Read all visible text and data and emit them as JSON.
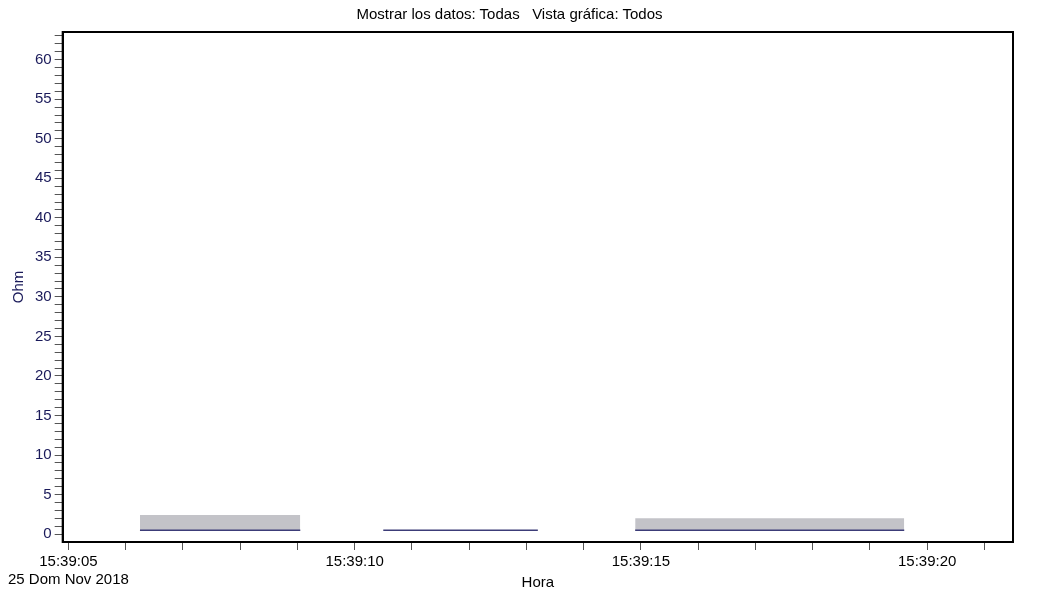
{
  "chart_data": {
    "type": "line",
    "title": "Mostrar los datos: Todas   Vista gráfica: Todos",
    "xlabel": "Hora",
    "ylabel": "Ohm",
    "series": [
      {
        "color": "#3c3c78",
        "x": [
          "2018-11-25T15:39:06.25",
          "2018-11-25T15:39:09.05"
        ],
        "values": [
          0.5,
          0.5
        ],
        "lower": [
          0.4,
          0.4
        ],
        "upper": [
          2.4,
          2.4
        ]
      },
      {
        "color": "#3c3c78",
        "x": [
          "2018-11-25T15:39:10.5",
          "2018-11-25T15:39:13.2"
        ],
        "values": [
          0.5,
          0.5
        ]
      },
      {
        "color": "#3c3c78",
        "x": [
          "2018-11-25T15:39:14.9",
          "2018-11-25T15:39:19.6"
        ],
        "values": [
          0.5,
          0.5
        ],
        "lower": [
          0.5,
          0.5
        ],
        "upper": [
          2.0,
          2.0
        ]
      }
    ],
    "xlim": [
      "2018-11-25T15:39:04.9",
      "2018-11-25T15:39:21.5"
    ],
    "xticks": [
      {
        "value": "2018-11-25T15:39:05",
        "label": "15:39:05\n25 Dom Nov 2018"
      },
      {
        "value": "2018-11-25T15:39:06",
        "label": null
      },
      {
        "value": "2018-11-25T15:39:07",
        "label": null
      },
      {
        "value": "2018-11-25T15:39:08",
        "label": null
      },
      {
        "value": "2018-11-25T15:39:09",
        "label": null
      },
      {
        "value": "2018-11-25T15:39:10",
        "label": "15:39:10"
      },
      {
        "value": "2018-11-25T15:39:11",
        "label": null
      },
      {
        "value": "2018-11-25T15:39:12",
        "label": null
      },
      {
        "value": "2018-11-25T15:39:13",
        "label": null
      },
      {
        "value": "2018-11-25T15:39:14",
        "label": null
      },
      {
        "value": "2018-11-25T15:39:15",
        "label": "15:39:15"
      },
      {
        "value": "2018-11-25T15:39:16",
        "label": null
      },
      {
        "value": "2018-11-25T15:39:17",
        "label": null
      },
      {
        "value": "2018-11-25T15:39:18",
        "label": null
      },
      {
        "value": "2018-11-25T15:39:19",
        "label": null
      },
      {
        "value": "2018-11-25T15:39:20",
        "label": "15:39:20"
      },
      {
        "value": "2018-11-25T15:39:21",
        "label": null
      }
    ],
    "ylim": [
      -1,
      63.5
    ],
    "yticks": [
      0,
      {
        "value": 1,
        "label": null
      },
      {
        "value": 2,
        "label": null
      },
      {
        "value": 3,
        "label": null
      },
      {
        "value": 4,
        "label": null
      },
      5,
      {
        "value": 6,
        "label": null
      },
      {
        "value": 7,
        "label": null
      },
      {
        "value": 8,
        "label": null
      },
      {
        "value": 9,
        "label": null
      },
      10,
      {
        "value": 11,
        "label": null
      },
      {
        "value": 12,
        "label": null
      },
      {
        "value": 13,
        "label": null
      },
      {
        "value": 14,
        "label": null
      },
      15,
      {
        "value": 16,
        "label": null
      },
      {
        "value": 17,
        "label": null
      },
      {
        "value": 18,
        "label": null
      },
      {
        "value": 19,
        "label": null
      },
      20,
      {
        "value": 21,
        "label": null
      },
      {
        "value": 22,
        "label": null
      },
      {
        "value": 23,
        "label": null
      },
      {
        "value": 24,
        "label": null
      },
      25,
      {
        "value": 26,
        "label": null
      },
      {
        "value": 27,
        "label": null
      },
      {
        "value": 28,
        "label": null
      },
      {
        "value": 29,
        "label": null
      },
      30,
      {
        "value": 31,
        "label": null
      },
      {
        "value": 32,
        "label": null
      },
      {
        "value": 33,
        "label": null
      },
      {
        "value": 34,
        "label": null
      },
      35,
      {
        "value": 36,
        "label": null
      },
      {
        "value": 37,
        "label": null
      },
      {
        "value": 38,
        "label": null
      },
      {
        "value": 39,
        "label": null
      },
      40,
      {
        "value": 41,
        "label": null
      },
      {
        "value": 42,
        "label": null
      },
      {
        "value": 43,
        "label": null
      },
      {
        "value": 44,
        "label": null
      },
      45,
      {
        "value": 46,
        "label": null
      },
      {
        "value": 47,
        "label": null
      },
      {
        "value": 48,
        "label": null
      },
      {
        "value": 49,
        "label": null
      },
      50,
      {
        "value": 51,
        "label": null
      },
      {
        "value": 52,
        "label": null
      },
      {
        "value": 53,
        "label": null
      },
      {
        "value": 54,
        "label": null
      },
      55,
      {
        "value": 56,
        "label": null
      },
      {
        "value": 57,
        "label": null
      },
      {
        "value": 58,
        "label": null
      },
      {
        "value": 59,
        "label": null
      },
      60,
      {
        "value": 61,
        "label": null
      },
      {
        "value": 62,
        "label": null
      },
      {
        "value": 63,
        "label": null
      }
    ],
    "grid": false,
    "legend": false,
    "marker": "none",
    "line_style": "solid"
  }
}
